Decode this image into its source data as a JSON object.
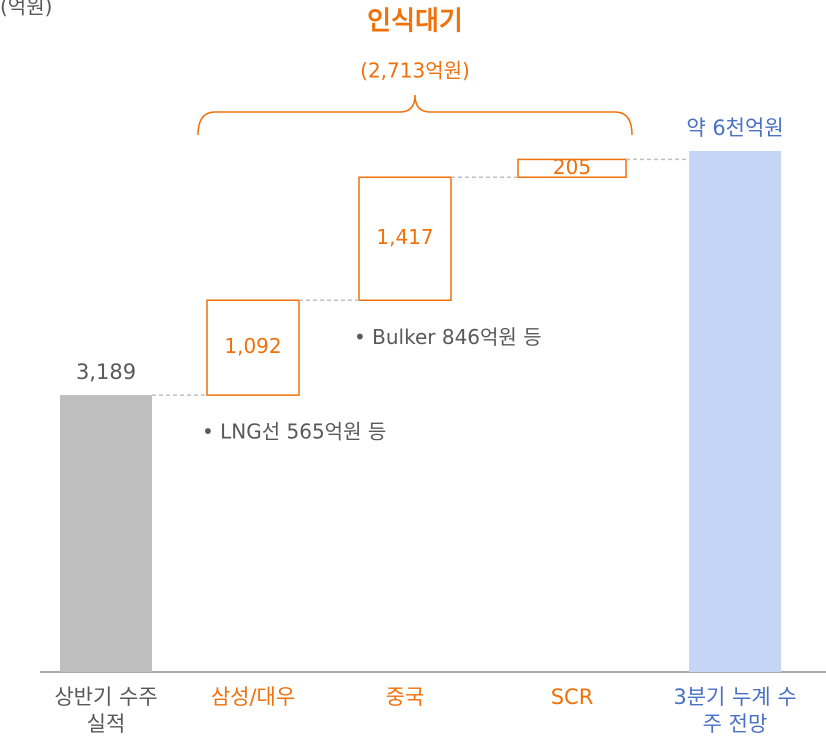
{
  "chart_data": {
    "type": "waterfall",
    "unit": "(억원)",
    "title": "인식대기",
    "subtitle": "(2,713억원)",
    "categories": [
      "상반기 수주 실적",
      "삼성/대우",
      "중국",
      "SCR",
      "3분기 누계 수주 전망"
    ],
    "measures": [
      "absolute",
      "relative",
      "relative",
      "relative",
      "absolute"
    ],
    "values": [
      3189,
      1092,
      1417,
      205,
      6000
    ],
    "value_labels": [
      "3,189",
      "1,092",
      "1,417",
      "205",
      "약 6천억원"
    ],
    "colors": [
      "#bfbfbf",
      "#f0700a",
      "#f0700a",
      "#f0700a",
      "#c5d5f5"
    ],
    "label_colors": [
      "#595959",
      "#f0700a",
      "#f0700a",
      "#f0700a",
      "#4a72c4"
    ],
    "annotations": [
      {
        "category": 1,
        "text": "• LNG선 565억원 등"
      },
      {
        "category": 2,
        "text": "• Bulker 846억원 등"
      }
    ]
  }
}
